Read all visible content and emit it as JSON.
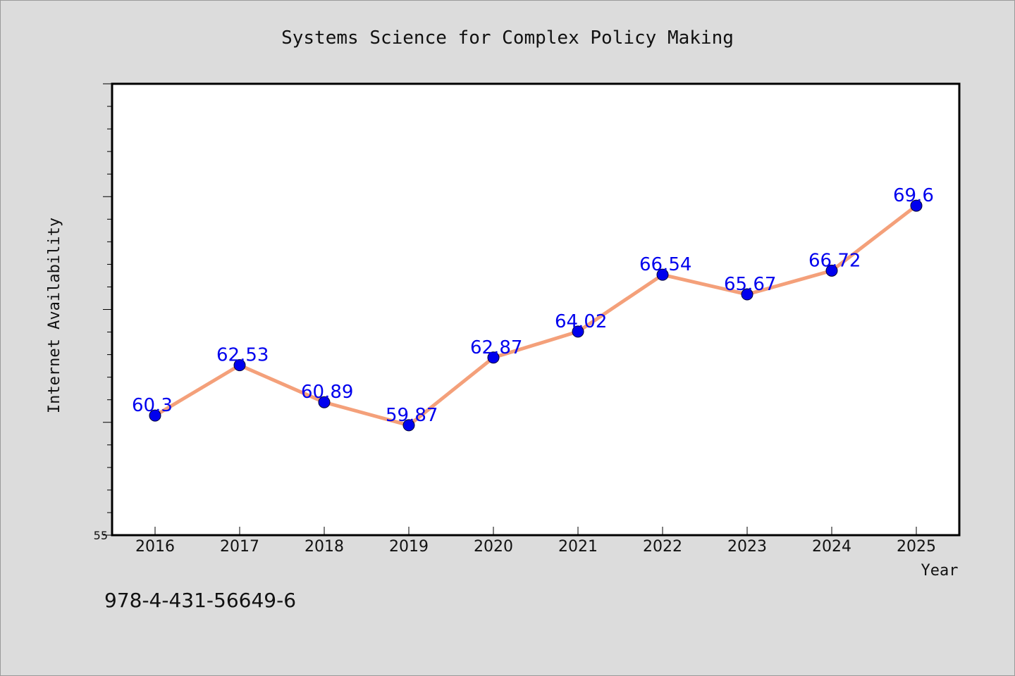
{
  "chart_data": {
    "type": "line",
    "title": "Systems Science for Complex Policy Making",
    "xlabel": "Year",
    "ylabel": "Internet Availability",
    "categories": [
      "2016",
      "2017",
      "2018",
      "2019",
      "2020",
      "2021",
      "2022",
      "2023",
      "2024",
      "2025"
    ],
    "values": [
      60.3,
      62.53,
      60.89,
      59.87,
      62.87,
      64.02,
      66.54,
      65.67,
      66.72,
      69.6
    ],
    "data_labels": [
      "60.3",
      "62.53",
      "60.89",
      "59.87",
      "62.87",
      "64.02",
      "66.54",
      "65.67",
      "66.72",
      "69.6"
    ],
    "ylim": [
      55,
      75
    ],
    "ytick_labels": [
      {
        "value": 55,
        "label": "55"
      }
    ],
    "grid": false,
    "line_color": "#f4a07a",
    "marker_color": "#0000ee",
    "label_color": "#0000ee"
  },
  "footer": {
    "isbn": "978-4-431-56649-6"
  }
}
